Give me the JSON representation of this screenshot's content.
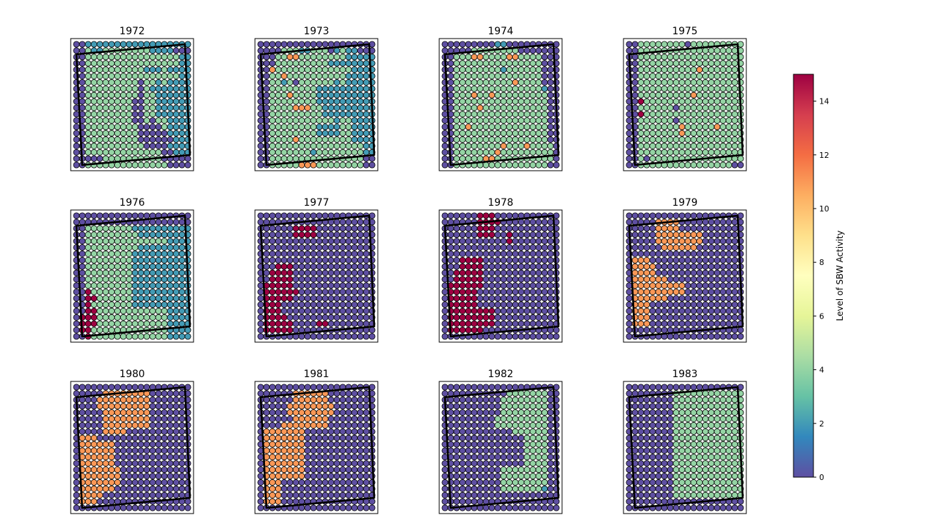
{
  "chart_data": {
    "type": "heatmap",
    "panel_titles": [
      "1972",
      "1973",
      "1974",
      "1975",
      "1976",
      "1977",
      "1978",
      "1979",
      "1980",
      "1981",
      "1982",
      "1983"
    ],
    "colorbar": {
      "label": "Level of SBW Activity",
      "range": [
        0,
        15
      ],
      "ticks": [
        "0",
        "2",
        "4",
        "6",
        "8",
        "10",
        "12",
        "14"
      ],
      "colormap": "Spectral_r"
    },
    "grid": {
      "rows": 20,
      "cols": 20
    },
    "boundary_outline_present": true,
    "panels": [
      {
        "year": "1972",
        "rows": [
          "11222222222222222222",
          "11322333333332222111",
          "11333333333333333322",
          "11333333333333333322",
          "11333333333322232222",
          "11333333333333333322",
          "11333333333133232222",
          "11333333333132222222",
          "11333333333133222222",
          "11333333331133222222",
          "11333333331133222222",
          "11333333331133222222",
          "11333333331131332222",
          "11333333333111132222",
          "11333333333111112222",
          "11333333333111111222",
          "11333333333311112222",
          "11333333333333311222",
          "11111333333333311111",
          "11333333333333331111"
        ]
      },
      {
        "year": "1973",
        "rows": [
          "11111111111111111111",
          "11113332233312322111",
          "11133443333333322222",
          "11133333333322222222",
          "11433333333333332222",
          "11334333333333322222",
          "11332313333332322222",
          "11333333332222222222",
          "11333433332222222222",
          "11333333332222222222",
          "11333344433222222222",
          "11333333333222222222",
          "11333333333332332222",
          "11333333332222332222",
          "11333333332222332222",
          "11333343333333332222",
          "11333333333333333322",
          "11333333323333333322",
          "11333333333333333311",
          "11333334443333333311"
        ]
      },
      {
        "year": "1974",
        "rows": [
          "11111111122111111111",
          "11111333333331111111",
          "11333443333443333111",
          "11333333333333333111",
          "11333333332333333111",
          "11333333333333333111",
          "11333333333343333111",
          "11333333333333333211",
          "11333433433333333311",
          "11333333333333333311",
          "11333343333333333311",
          "11333333333333333311",
          "11333333333333333311",
          "11334333333333333311",
          "11333333333333333311",
          "11333333333333333311",
          "11333333334333433331",
          "11333333343333333331",
          "11333334433333333331",
          "11333333333333333311"
        ]
      },
      {
        "year": "1975",
        "rows": [
          "11333333331333333333",
          "11333333333333333333",
          "11333333333333333333",
          "11333333333333333333",
          "11333333333343333333",
          "11333333333333333333",
          "11333333333333333333",
          "11333333333333333333",
          "11333333333433333333",
          "11533333333333333333",
          "11333333133333333333",
          "11533333333333333333",
          "11333333133333333333",
          "11333333343333343333",
          "11333333343333333333",
          "11333333333333333333",
          "11333333333333333333",
          "11333333333333333333",
          "11313333333333333333",
          "11333333333333333311"
        ]
      },
      {
        "year": "1976",
        "rows": [
          "11111111111111111111",
          "11111111111111111111",
          "11333333332222222222",
          "11333333333222222222",
          "11333333333333332222",
          "11333333333222222222",
          "11333333332222222222",
          "11333333332222222222",
          "11333333332222222222",
          "11333333332222222222",
          "11333333332222222222",
          "11333333332222222222",
          "11533333332222222222",
          "11553333332222222222",
          "11533333332222222222",
          "11553333333333332222",
          "15553333333333332222",
          "15553333333333332222",
          "15533333333333332222",
          "11533333333333332222"
        ]
      },
      {
        "year": "1977",
        "rows": [
          "11111111111111111111",
          "11111111111111111111",
          "11111155551111111111",
          "11111155551111111111",
          "11111111111111111111",
          "11111111111111111111",
          "11111111111111111111",
          "11111111111111111111",
          "11155511111111111111",
          "11555511111111111111",
          "11555511111111111111",
          "15555511111111111111",
          "15555551111111111111",
          "15555511111111111111",
          "15551111111111111111",
          "15551111111111111111",
          "15555111111111111111",
          "15555511115511111111",
          "15555511111111111111",
          "11111111111111111111"
        ]
      },
      {
        "year": "1978",
        "rows": [
          "11111155511111111111",
          "11111155551111111111",
          "11111155511111111111",
          "11111155511511111111",
          "11111111111511111111",
          "11111111111111111111",
          "11111111111111111111",
          "11155551111111111111",
          "11155551111111111111",
          "11555551111111111111",
          "11555551111111111111",
          "15555551111111111111",
          "15555511111111111111",
          "15555511111111111111",
          "15555511111111111111",
          "15555555511111111111",
          "15555555511111111111",
          "15555555511111111111",
          "15555551111111111111",
          "11111111111111111111"
        ]
      },
      {
        "year": "1979",
        "rows": [
          "11111111111111111111",
          "11111444411111111111",
          "11111444411111111111",
          "11111444444441111111",
          "11111444444441111111",
          "11111144444411111111",
          "11111111111111111111",
          "14441111111111111111",
          "14444111111111111111",
          "14444111111111111111",
          "14444441111111111111",
          "14444444441111111111",
          "14444444441111111111",
          "14444441111111111111",
          "14441111111111111111",
          "14441111111111111111",
          "14441111111111111111",
          "14441111111111111111",
          "11111111111111111111",
          "11111111111111111111"
        ]
      },
      {
        "year": "1980",
        "rows": [
          "11111111111111111111",
          "11111444444441111111",
          "11114444444441111111",
          "11114444444441111111",
          "11111444444441111111",
          "11111444444441111111",
          "11111444444441111111",
          "11111444411111111111",
          "14441111111111111111",
          "14444441111111111111",
          "14444441111111111111",
          "14444441111111111111",
          "14444441111111111111",
          "14444444111111111111",
          "14444444111111111111",
          "14444444111111111111",
          "14444441111111111111",
          "14444111111111111111",
          "14441111111111111111",
          "11111111111111111111"
        ]
      },
      {
        "year": "1981",
        "rows": [
          "11111111111111111111",
          "11111144444411111111",
          "11111144444411111111",
          "11111444444441111111",
          "11111444444441111111",
          "11111144444411111111",
          "11114444444411111111",
          "14444444111111111111",
          "14444444111111111111",
          "14444444111111111111",
          "14444444111111111111",
          "14444444111111111111",
          "14444444111111111111",
          "14444444111111111111",
          "14444444111111111111",
          "14441111111111111111",
          "14441111111111111111",
          "14441111111111111111",
          "14441111111111111111",
          "11111111111111111111"
        ]
      },
      {
        "year": "1982",
        "rows": [
          "11111111111111111111",
          "11111111111333333311",
          "11111111113333333311",
          "11111111113333333311",
          "11111111113333333311",
          "11111111133333333311",
          "11111111133333333311",
          "11111111111133333311",
          "11111111111111333311",
          "11111111111111333311",
          "11111111111111333311",
          "11111111111111333311",
          "11111111111111333311",
          "11111111113333333311",
          "11111111113333333311",
          "11111111113333333311",
          "11111111113333333211",
          "11111111111111111111",
          "11111111111111111111",
          "11111111111111111111"
        ]
      },
      {
        "year": "1983",
        "rows": [
          "11111111111111111111",
          "11111111333333333333",
          "11111111333333333333",
          "11111111333333333333",
          "11111111333333333333",
          "11111111333333333333",
          "11111111333333333333",
          "11111111333333333333",
          "11111111333333333333",
          "11111111333333333333",
          "11111111333333333333",
          "11111111333333333333",
          "11111111333333333333",
          "11111111333333333333",
          "11111111333333333333",
          "11111111333333333333",
          "11111111333333333333",
          "11111111333333333333",
          "11111111111111111111",
          "11111111111111111111"
        ]
      }
    ],
    "level_codes": {
      "1": 0,
      "2": 2,
      "3": 4,
      "4": 11,
      "5": 15
    }
  }
}
